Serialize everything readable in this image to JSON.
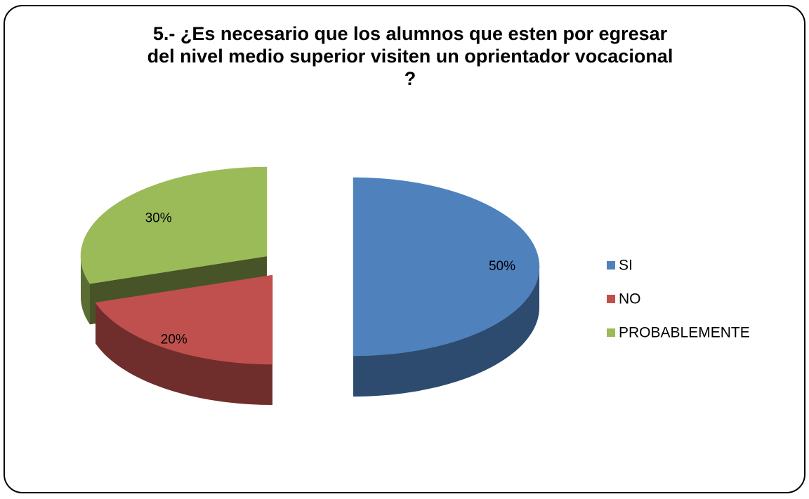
{
  "chart_data": {
    "type": "pie",
    "title": [
      "5.- ¿Es necesario que los alumnos  que esten por egresar",
      "del nivel medio superior visiten un oprientador vocacional",
      "?"
    ],
    "categories": [
      "SI",
      "NO",
      "PROBABLEMENTE"
    ],
    "values": [
      50,
      20,
      30
    ],
    "value_labels": [
      "50%",
      "20%",
      "30%"
    ],
    "colors": [
      "#4f81bd",
      "#c0504d",
      "#9bbb59"
    ],
    "legend": "right"
  }
}
